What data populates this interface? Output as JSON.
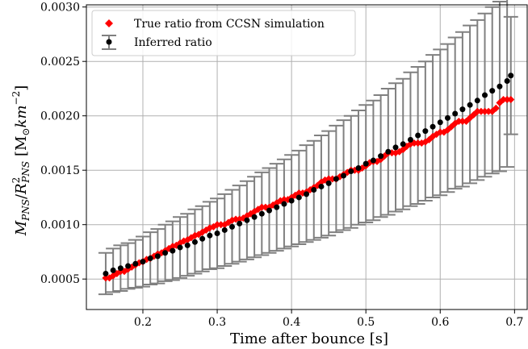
{
  "chart_data": {
    "type": "scatter",
    "xlabel": "Time after bounce [s]",
    "ylabel_parts": {
      "m": "M",
      "m_sub": "PNS",
      "slash": "/",
      "r": "R",
      "r_sup": "2",
      "r_sub": "PNS",
      "unit_open": "[M",
      "sun": "⊙",
      "km": "km",
      "km_sup": "−2",
      "unit_close": "]"
    },
    "xlim": [
      0.124,
      0.717
    ],
    "ylim": [
      0.00022,
      0.00302
    ],
    "xticks": [
      0.2,
      0.3,
      0.4,
      0.5,
      0.6,
      0.7
    ],
    "xtick_labels": [
      "0.2",
      "0.3",
      "0.4",
      "0.5",
      "0.6",
      "0.7"
    ],
    "yticks": [
      0.0005,
      0.001,
      0.0015,
      0.002,
      0.0025,
      0.003
    ],
    "ytick_labels": [
      "0.0005",
      "0.0010",
      "0.0015",
      "0.0020",
      "0.0025",
      "0.0030"
    ],
    "grid": true,
    "legend_position": "top-left",
    "series": [
      {
        "name": "True ratio from CCSN simulation",
        "marker": "diamond",
        "color": "#ff0000",
        "x": [
          0.15,
          0.155,
          0.16,
          0.165,
          0.17,
          0.175,
          0.18,
          0.185,
          0.19,
          0.195,
          0.2,
          0.205,
          0.21,
          0.215,
          0.22,
          0.225,
          0.23,
          0.235,
          0.24,
          0.245,
          0.25,
          0.255,
          0.26,
          0.265,
          0.27,
          0.275,
          0.28,
          0.285,
          0.29,
          0.295,
          0.3,
          0.305,
          0.31,
          0.315,
          0.32,
          0.325,
          0.33,
          0.335,
          0.34,
          0.345,
          0.35,
          0.355,
          0.36,
          0.365,
          0.37,
          0.375,
          0.38,
          0.385,
          0.39,
          0.395,
          0.4,
          0.405,
          0.41,
          0.415,
          0.42,
          0.425,
          0.43,
          0.435,
          0.44,
          0.445,
          0.45,
          0.455,
          0.46,
          0.465,
          0.47,
          0.475,
          0.48,
          0.485,
          0.49,
          0.495,
          0.5,
          0.505,
          0.51,
          0.515,
          0.52,
          0.525,
          0.53,
          0.535,
          0.54,
          0.545,
          0.55,
          0.555,
          0.56,
          0.565,
          0.57,
          0.575,
          0.58,
          0.585,
          0.59,
          0.595,
          0.6,
          0.605,
          0.61,
          0.615,
          0.62,
          0.625,
          0.63,
          0.635,
          0.64,
          0.645,
          0.65,
          0.655,
          0.66,
          0.665,
          0.67,
          0.675,
          0.68,
          0.685,
          0.69,
          0.695
        ],
        "y": [
          0.00051,
          0.00051,
          0.00053,
          0.00055,
          0.00057,
          0.00057,
          0.00059,
          0.00061,
          0.00063,
          0.00065,
          0.00066,
          0.00068,
          0.00069,
          0.00071,
          0.00073,
          0.00074,
          0.00076,
          0.00078,
          0.0008,
          0.00081,
          0.00083,
          0.00085,
          0.00086,
          0.00088,
          0.0009,
          0.00091,
          0.00093,
          0.00095,
          0.00097,
          0.00098,
          0.001,
          0.001,
          0.001,
          0.00102,
          0.00104,
          0.00105,
          0.00105,
          0.00106,
          0.00108,
          0.0011,
          0.00112,
          0.00114,
          0.00116,
          0.00116,
          0.00116,
          0.00118,
          0.0012,
          0.00122,
          0.00123,
          0.00123,
          0.00125,
          0.00127,
          0.00129,
          0.00129,
          0.0013,
          0.00132,
          0.00134,
          0.00136,
          0.00139,
          0.00141,
          0.00142,
          0.00142,
          0.00142,
          0.00144,
          0.00146,
          0.00148,
          0.0015,
          0.0015,
          0.0015,
          0.00152,
          0.00154,
          0.00157,
          0.00158,
          0.00158,
          0.0016,
          0.00163,
          0.00166,
          0.00166,
          0.00166,
          0.00167,
          0.00169,
          0.00172,
          0.00174,
          0.00175,
          0.00175,
          0.00175,
          0.00176,
          0.00178,
          0.00181,
          0.00183,
          0.00185,
          0.00185,
          0.00187,
          0.0019,
          0.00193,
          0.00195,
          0.00195,
          0.00195,
          0.00198,
          0.00201,
          0.00204,
          0.00204,
          0.00204,
          0.00204,
          0.00204,
          0.00207,
          0.00212,
          0.00215,
          0.00215,
          0.00215
        ]
      },
      {
        "name": "Inferred ratio",
        "marker": "circle",
        "color": "#000000",
        "errorbar_color": "#808080",
        "x": [
          0.15,
          0.16,
          0.17,
          0.18,
          0.19,
          0.2,
          0.21,
          0.22,
          0.23,
          0.24,
          0.25,
          0.26,
          0.27,
          0.28,
          0.29,
          0.3,
          0.31,
          0.32,
          0.33,
          0.34,
          0.35,
          0.36,
          0.37,
          0.38,
          0.39,
          0.4,
          0.41,
          0.42,
          0.43,
          0.44,
          0.45,
          0.46,
          0.47,
          0.48,
          0.49,
          0.5,
          0.51,
          0.52,
          0.53,
          0.54,
          0.55,
          0.56,
          0.57,
          0.58,
          0.59,
          0.6,
          0.61,
          0.62,
          0.63,
          0.64,
          0.65,
          0.66,
          0.67,
          0.68,
          0.69,
          0.695
        ],
        "y": [
          0.00055,
          0.00058,
          0.0006,
          0.00062,
          0.00064,
          0.00066,
          0.00069,
          0.00071,
          0.00074,
          0.00076,
          0.00079,
          0.00081,
          0.00084,
          0.00087,
          0.0009,
          0.00092,
          0.00095,
          0.00098,
          0.00101,
          0.00104,
          0.00107,
          0.0011,
          0.00113,
          0.00116,
          0.00119,
          0.00122,
          0.00125,
          0.00128,
          0.00132,
          0.00135,
          0.00138,
          0.00142,
          0.00145,
          0.00149,
          0.00152,
          0.00156,
          0.00159,
          0.00163,
          0.00167,
          0.00171,
          0.00174,
          0.00178,
          0.00182,
          0.00186,
          0.0019,
          0.00194,
          0.00198,
          0.00202,
          0.00206,
          0.0021,
          0.00214,
          0.00219,
          0.00223,
          0.00227,
          0.00232,
          0.00237
        ],
        "yerr_low": [
          0.00036,
          0.00038,
          0.00039,
          0.00041,
          0.00042,
          0.00043,
          0.00045,
          0.00046,
          0.00048,
          0.00049,
          0.00051,
          0.00053,
          0.00055,
          0.00057,
          0.00059,
          0.0006,
          0.00062,
          0.00064,
          0.00066,
          0.00068,
          0.0007,
          0.00072,
          0.00074,
          0.00076,
          0.00078,
          0.0008,
          0.00082,
          0.00084,
          0.00086,
          0.00088,
          0.0009,
          0.00093,
          0.00095,
          0.00097,
          0.001,
          0.00102,
          0.00104,
          0.00107,
          0.00109,
          0.00112,
          0.00114,
          0.00117,
          0.00119,
          0.00122,
          0.00125,
          0.00127,
          0.0013,
          0.00133,
          0.00135,
          0.00138,
          0.00141,
          0.00144,
          0.00147,
          0.00149,
          0.00153,
          0.00183
        ],
        "yerr_high": [
          0.00074,
          0.00078,
          0.00081,
          0.00083,
          0.00086,
          0.00089,
          0.00093,
          0.00096,
          0.001,
          0.00103,
          0.00107,
          0.0011,
          0.00114,
          0.00117,
          0.00121,
          0.00124,
          0.00128,
          0.00132,
          0.00136,
          0.0014,
          0.00144,
          0.00148,
          0.00152,
          0.00156,
          0.0016,
          0.00164,
          0.00168,
          0.00173,
          0.00177,
          0.00182,
          0.00186,
          0.00191,
          0.00196,
          0.002,
          0.00205,
          0.0021,
          0.00214,
          0.00219,
          0.00225,
          0.0023,
          0.00234,
          0.0024,
          0.00245,
          0.0025,
          0.00256,
          0.00261,
          0.00266,
          0.00272,
          0.00277,
          0.00283,
          0.00288,
          0.00294,
          0.003,
          0.00305,
          0.00312,
          0.00291
        ]
      }
    ]
  }
}
